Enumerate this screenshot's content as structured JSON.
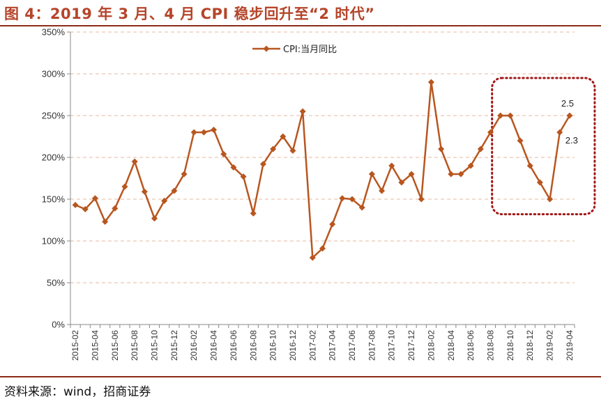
{
  "title": "图 4：2019 年 3 月、4 月 CPI 稳步回升至“2 时代”",
  "source": "资料来源：wind，招商证券",
  "colors": {
    "line": "#b8561f",
    "rule": "#8b2a16",
    "highlight": "#a01818",
    "grid": "#e6b8a0"
  },
  "chart_data": {
    "type": "line",
    "title": "",
    "xlabel": "",
    "ylabel": "",
    "ylim": [
      0,
      3.5
    ],
    "y_ticks": [
      "0%",
      "50%",
      "100%",
      "150%",
      "200%",
      "250%",
      "300%",
      "350%"
    ],
    "x": [
      "2015-02",
      "2015-03",
      "2015-04",
      "2015-05",
      "2015-06",
      "2015-07",
      "2015-08",
      "2015-09",
      "2015-10",
      "2015-11",
      "2015-12",
      "2016-01",
      "2016-02",
      "2016-03",
      "2016-04",
      "2016-05",
      "2016-06",
      "2016-07",
      "2016-08",
      "2016-09",
      "2016-10",
      "2016-11",
      "2016-12",
      "2017-01",
      "2017-02",
      "2017-03",
      "2017-04",
      "2017-05",
      "2017-06",
      "2017-07",
      "2017-08",
      "2017-09",
      "2017-10",
      "2017-11",
      "2017-12",
      "2018-01",
      "2018-02",
      "2018-03",
      "2018-04",
      "2018-05",
      "2018-06",
      "2018-07",
      "2018-08",
      "2018-09",
      "2018-10",
      "2018-11",
      "2018-12",
      "2019-01",
      "2019-02",
      "2019-03",
      "2019-04"
    ],
    "x_tick_labels": [
      "2015-02",
      "2015-04",
      "2015-06",
      "2015-08",
      "2015-10",
      "2015-12",
      "2016-02",
      "2016-04",
      "2016-06",
      "2016-08",
      "2016-10",
      "2016-12",
      "2017-02",
      "2017-04",
      "2017-06",
      "2017-08",
      "2017-10",
      "2017-12",
      "2018-02",
      "2018-04",
      "2018-06",
      "2018-08",
      "2018-10",
      "2018-12",
      "2019-02",
      "2019-04"
    ],
    "series": [
      {
        "name": "CPI:当月同比",
        "values": [
          1.43,
          1.38,
          1.51,
          1.23,
          1.39,
          1.65,
          1.95,
          1.59,
          1.27,
          1.48,
          1.6,
          1.8,
          2.3,
          2.3,
          2.33,
          2.04,
          1.88,
          1.77,
          1.33,
          1.92,
          2.1,
          2.25,
          2.08,
          2.55,
          0.8,
          0.91,
          1.2,
          1.51,
          1.5,
          1.4,
          1.8,
          1.6,
          1.9,
          1.7,
          1.8,
          1.5,
          2.9,
          2.1,
          1.8,
          1.8,
          1.9,
          2.1,
          2.3,
          2.5,
          2.5,
          2.2,
          1.9,
          1.7,
          1.5,
          2.3,
          2.5
        ]
      }
    ],
    "annotations": [
      "2.3",
      "2.5"
    ],
    "legend": "top-left",
    "grid": true
  }
}
